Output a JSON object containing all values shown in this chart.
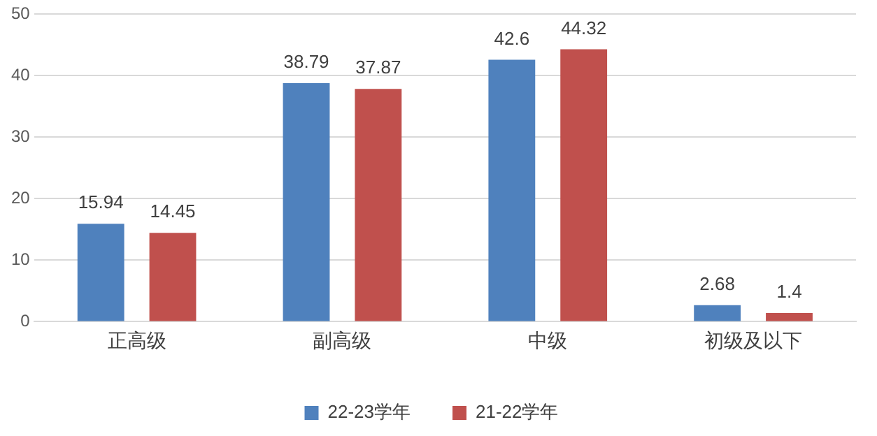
{
  "chart_data": {
    "type": "bar",
    "categories": [
      "正高级",
      "副高级",
      "中级",
      "初级及以下"
    ],
    "series": [
      {
        "name": "22-23学年",
        "color": "#4f81bd",
        "values": [
          15.94,
          38.79,
          42.6,
          2.68
        ]
      },
      {
        "name": "21-22学年",
        "color": "#c0504d",
        "values": [
          14.45,
          37.87,
          44.32,
          1.4
        ]
      }
    ],
    "ylim": [
      0,
      50
    ],
    "yticks": [
      0,
      10,
      20,
      30,
      40,
      50
    ],
    "grid": "y",
    "legend": "bottom",
    "data_labels": true
  }
}
